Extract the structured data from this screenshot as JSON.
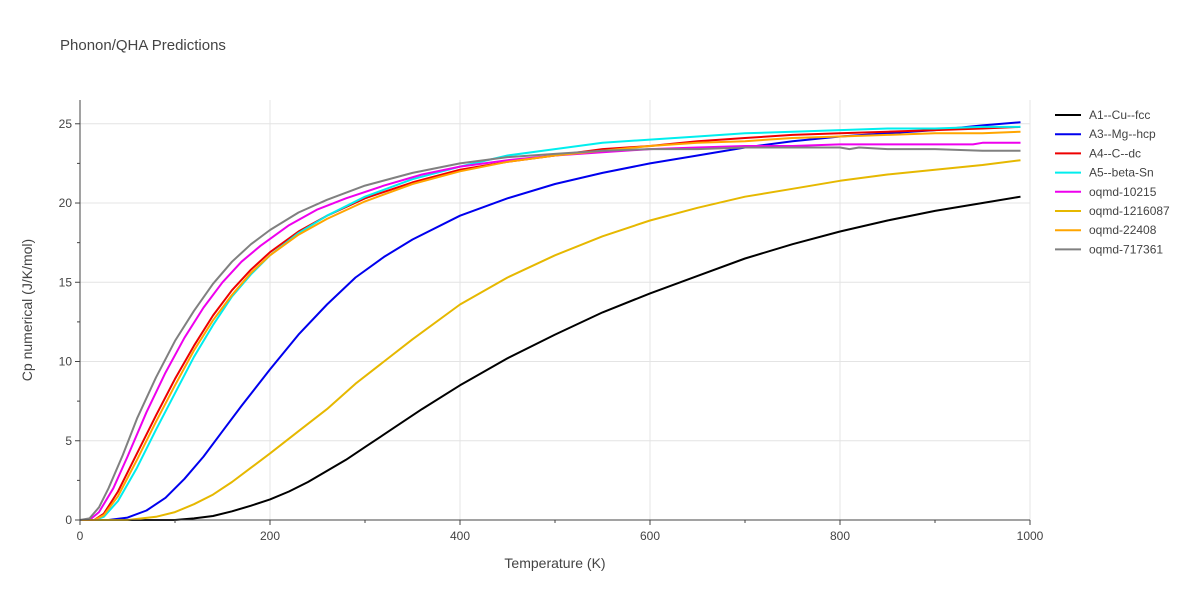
{
  "chart_data": {
    "type": "line",
    "title": "Phonon/QHA Predictions",
    "xlabel": "Temperature (K)",
    "ylabel": "Cp numerical (J/K/mol)",
    "xlim": [
      0,
      1000
    ],
    "ylim": [
      0,
      26.5
    ],
    "xticks": [
      0,
      200,
      400,
      600,
      800,
      1000
    ],
    "yticks": [
      0,
      5,
      10,
      15,
      20,
      25
    ],
    "grid": true,
    "legend_position": "right",
    "series": [
      {
        "name": "A1--Cu--fcc",
        "color": "#000000",
        "points": [
          [
            0,
            0
          ],
          [
            60,
            0
          ],
          [
            100,
            0
          ],
          [
            120,
            0.1
          ],
          [
            140,
            0.25
          ],
          [
            160,
            0.55
          ],
          [
            180,
            0.9
          ],
          [
            200,
            1.3
          ],
          [
            220,
            1.8
          ],
          [
            240,
            2.4
          ],
          [
            260,
            3.1
          ],
          [
            280,
            3.8
          ],
          [
            300,
            4.6
          ],
          [
            330,
            5.8
          ],
          [
            360,
            7.0
          ],
          [
            400,
            8.5
          ],
          [
            450,
            10.2
          ],
          [
            500,
            11.7
          ],
          [
            550,
            13.1
          ],
          [
            600,
            14.3
          ],
          [
            650,
            15.4
          ],
          [
            700,
            16.5
          ],
          [
            750,
            17.4
          ],
          [
            800,
            18.2
          ],
          [
            850,
            18.9
          ],
          [
            900,
            19.5
          ],
          [
            950,
            20.0
          ],
          [
            990,
            20.4
          ]
        ]
      },
      {
        "name": "A3--Mg--hcp",
        "color": "#0000ee",
        "points": [
          [
            0,
            0
          ],
          [
            30,
            0
          ],
          [
            50,
            0.15
          ],
          [
            70,
            0.6
          ],
          [
            90,
            1.4
          ],
          [
            110,
            2.6
          ],
          [
            130,
            4.0
          ],
          [
            150,
            5.6
          ],
          [
            170,
            7.2
          ],
          [
            200,
            9.5
          ],
          [
            230,
            11.7
          ],
          [
            260,
            13.6
          ],
          [
            290,
            15.3
          ],
          [
            320,
            16.6
          ],
          [
            350,
            17.7
          ],
          [
            400,
            19.2
          ],
          [
            450,
            20.3
          ],
          [
            500,
            21.2
          ],
          [
            550,
            21.9
          ],
          [
            600,
            22.5
          ],
          [
            650,
            23.0
          ],
          [
            700,
            23.5
          ],
          [
            750,
            23.9
          ],
          [
            800,
            24.2
          ],
          [
            850,
            24.4
          ],
          [
            900,
            24.6
          ],
          [
            950,
            24.9
          ],
          [
            990,
            25.1
          ]
        ]
      },
      {
        "name": "A4--C--dc",
        "color": "#ee0000",
        "points": [
          [
            0,
            0
          ],
          [
            15,
            0
          ],
          [
            25,
            0.4
          ],
          [
            40,
            1.8
          ],
          [
            60,
            4.2
          ],
          [
            80,
            6.6
          ],
          [
            100,
            8.9
          ],
          [
            120,
            11.0
          ],
          [
            140,
            12.9
          ],
          [
            160,
            14.5
          ],
          [
            180,
            15.8
          ],
          [
            200,
            16.9
          ],
          [
            230,
            18.2
          ],
          [
            260,
            19.2
          ],
          [
            300,
            20.3
          ],
          [
            350,
            21.3
          ],
          [
            400,
            22.1
          ],
          [
            450,
            22.6
          ],
          [
            500,
            23.0
          ],
          [
            550,
            23.4
          ],
          [
            600,
            23.6
          ],
          [
            650,
            23.9
          ],
          [
            700,
            24.1
          ],
          [
            750,
            24.3
          ],
          [
            800,
            24.4
          ],
          [
            850,
            24.5
          ],
          [
            900,
            24.6
          ],
          [
            950,
            24.7
          ],
          [
            990,
            24.8
          ]
        ]
      },
      {
        "name": "A5--beta-Sn",
        "color": "#00eeee",
        "points": [
          [
            0,
            0
          ],
          [
            15,
            0
          ],
          [
            25,
            0.2
          ],
          [
            40,
            1.2
          ],
          [
            60,
            3.3
          ],
          [
            80,
            5.7
          ],
          [
            100,
            8.0
          ],
          [
            120,
            10.3
          ],
          [
            140,
            12.3
          ],
          [
            160,
            14.1
          ],
          [
            180,
            15.5
          ],
          [
            200,
            16.7
          ],
          [
            230,
            18.1
          ],
          [
            260,
            19.2
          ],
          [
            300,
            20.4
          ],
          [
            350,
            21.5
          ],
          [
            400,
            22.3
          ],
          [
            450,
            23.0
          ],
          [
            500,
            23.4
          ],
          [
            550,
            23.8
          ],
          [
            600,
            24.0
          ],
          [
            650,
            24.2
          ],
          [
            700,
            24.4
          ],
          [
            750,
            24.5
          ],
          [
            800,
            24.6
          ],
          [
            850,
            24.7
          ],
          [
            900,
            24.7
          ],
          [
            950,
            24.8
          ],
          [
            990,
            24.8
          ]
        ]
      },
      {
        "name": "oqmd-10215",
        "color": "#ee00ee",
        "points": [
          [
            0,
            0
          ],
          [
            10,
            0
          ],
          [
            20,
            0.5
          ],
          [
            35,
            2.0
          ],
          [
            50,
            4.0
          ],
          [
            70,
            6.8
          ],
          [
            90,
            9.3
          ],
          [
            110,
            11.5
          ],
          [
            130,
            13.4
          ],
          [
            150,
            15.0
          ],
          [
            170,
            16.3
          ],
          [
            190,
            17.3
          ],
          [
            220,
            18.6
          ],
          [
            250,
            19.6
          ],
          [
            280,
            20.3
          ],
          [
            320,
            21.1
          ],
          [
            360,
            21.8
          ],
          [
            400,
            22.3
          ],
          [
            450,
            22.7
          ],
          [
            500,
            23.0
          ],
          [
            550,
            23.2
          ],
          [
            600,
            23.4
          ],
          [
            650,
            23.5
          ],
          [
            700,
            23.6
          ],
          [
            750,
            23.6
          ],
          [
            800,
            23.7
          ],
          [
            850,
            23.7
          ],
          [
            900,
            23.7
          ],
          [
            940,
            23.7
          ],
          [
            950,
            23.8
          ],
          [
            990,
            23.8
          ]
        ]
      },
      {
        "name": "oqmd-1216087",
        "color": "#e6b800",
        "points": [
          [
            0,
            0
          ],
          [
            50,
            0
          ],
          [
            80,
            0.2
          ],
          [
            100,
            0.5
          ],
          [
            120,
            1.0
          ],
          [
            140,
            1.6
          ],
          [
            160,
            2.4
          ],
          [
            180,
            3.3
          ],
          [
            200,
            4.2
          ],
          [
            230,
            5.6
          ],
          [
            260,
            7.0
          ],
          [
            290,
            8.6
          ],
          [
            320,
            10.0
          ],
          [
            350,
            11.4
          ],
          [
            400,
            13.6
          ],
          [
            450,
            15.3
          ],
          [
            500,
            16.7
          ],
          [
            550,
            17.9
          ],
          [
            600,
            18.9
          ],
          [
            650,
            19.7
          ],
          [
            700,
            20.4
          ],
          [
            750,
            20.9
          ],
          [
            800,
            21.4
          ],
          [
            850,
            21.8
          ],
          [
            900,
            22.1
          ],
          [
            950,
            22.4
          ],
          [
            990,
            22.7
          ]
        ]
      },
      {
        "name": "oqmd-22408",
        "color": "#ffa500",
        "points": [
          [
            0,
            0
          ],
          [
            15,
            0
          ],
          [
            25,
            0.3
          ],
          [
            40,
            1.5
          ],
          [
            60,
            3.8
          ],
          [
            80,
            6.2
          ],
          [
            100,
            8.5
          ],
          [
            120,
            10.7
          ],
          [
            140,
            12.6
          ],
          [
            160,
            14.2
          ],
          [
            180,
            15.6
          ],
          [
            200,
            16.7
          ],
          [
            230,
            18.0
          ],
          [
            260,
            19.0
          ],
          [
            300,
            20.1
          ],
          [
            350,
            21.2
          ],
          [
            400,
            22.0
          ],
          [
            450,
            22.6
          ],
          [
            500,
            23.0
          ],
          [
            550,
            23.3
          ],
          [
            600,
            23.6
          ],
          [
            650,
            23.8
          ],
          [
            700,
            23.9
          ],
          [
            750,
            24.1
          ],
          [
            800,
            24.2
          ],
          [
            850,
            24.3
          ],
          [
            900,
            24.4
          ],
          [
            950,
            24.4
          ],
          [
            990,
            24.5
          ]
        ]
      },
      {
        "name": "oqmd-717361",
        "color": "#808080",
        "points": [
          [
            0,
            0
          ],
          [
            10,
            0.1
          ],
          [
            20,
            0.8
          ],
          [
            30,
            2.0
          ],
          [
            45,
            4.1
          ],
          [
            60,
            6.4
          ],
          [
            80,
            9.0
          ],
          [
            100,
            11.3
          ],
          [
            120,
            13.2
          ],
          [
            140,
            14.9
          ],
          [
            160,
            16.3
          ],
          [
            180,
            17.4
          ],
          [
            200,
            18.3
          ],
          [
            230,
            19.4
          ],
          [
            260,
            20.2
          ],
          [
            300,
            21.1
          ],
          [
            350,
            21.9
          ],
          [
            400,
            22.5
          ],
          [
            450,
            22.9
          ],
          [
            500,
            23.1
          ],
          [
            550,
            23.3
          ],
          [
            600,
            23.4
          ],
          [
            650,
            23.4
          ],
          [
            700,
            23.5
          ],
          [
            750,
            23.5
          ],
          [
            800,
            23.5
          ],
          [
            810,
            23.4
          ],
          [
            820,
            23.5
          ],
          [
            850,
            23.4
          ],
          [
            900,
            23.4
          ],
          [
            950,
            23.3
          ],
          [
            990,
            23.3
          ]
        ]
      }
    ]
  }
}
